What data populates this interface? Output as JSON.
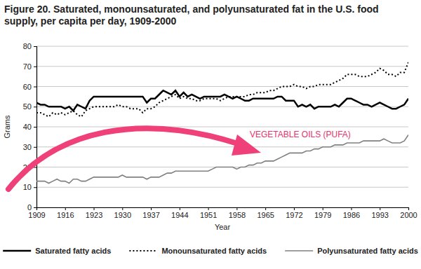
{
  "chart_data": {
    "type": "line",
    "title": "Figure 20. Saturated, monounsaturated, and polyunsaturated fat in the U.S. food supply, per capita per day, 1909-2000",
    "x_label": "Year",
    "y_label": "Grams",
    "annotation": "VEGETABLE OILS (PUFA)",
    "x": [
      1909,
      1910,
      1911,
      1912,
      1913,
      1914,
      1915,
      1916,
      1917,
      1918,
      1919,
      1920,
      1921,
      1922,
      1923,
      1924,
      1925,
      1926,
      1927,
      1928,
      1929,
      1930,
      1931,
      1932,
      1933,
      1934,
      1935,
      1936,
      1937,
      1938,
      1939,
      1940,
      1941,
      1942,
      1943,
      1944,
      1945,
      1946,
      1947,
      1948,
      1949,
      1950,
      1951,
      1952,
      1953,
      1954,
      1955,
      1956,
      1957,
      1958,
      1959,
      1960,
      1961,
      1962,
      1963,
      1964,
      1965,
      1966,
      1967,
      1968,
      1969,
      1970,
      1971,
      1972,
      1973,
      1974,
      1975,
      1976,
      1977,
      1978,
      1979,
      1980,
      1981,
      1982,
      1983,
      1984,
      1985,
      1986,
      1987,
      1988,
      1989,
      1990,
      1991,
      1992,
      1993,
      1994,
      1995,
      1996,
      1997,
      1998,
      1999,
      2000
    ],
    "series": [
      {
        "name": "Saturated fatty acids",
        "color": "#000000",
        "line_style": "solid",
        "values": [
          52,
          51,
          51,
          50,
          50,
          50,
          50,
          49,
          50,
          48,
          51,
          50,
          49,
          53,
          55,
          55,
          55,
          55,
          55,
          55,
          55,
          55,
          55,
          55,
          55,
          55,
          55,
          52,
          54,
          54,
          56,
          58,
          57,
          56,
          58,
          55,
          57,
          55,
          56,
          55,
          54,
          55,
          55,
          55,
          55,
          55,
          56,
          55,
          54,
          55,
          54,
          53,
          53,
          54,
          54,
          54,
          54,
          54,
          54,
          55,
          55,
          53,
          53,
          53,
          50,
          51,
          50,
          51,
          49,
          50,
          50,
          50,
          50,
          51,
          50,
          52,
          54,
          54,
          53,
          52,
          51,
          51,
          50,
          51,
          52,
          51,
          50,
          49,
          49,
          50,
          51,
          54
        ]
      },
      {
        "name": "Monounsaturated fatty acids",
        "color": "#000000",
        "line_style": "dotted",
        "values": [
          47,
          47,
          46,
          45,
          47,
          46,
          47,
          46,
          47,
          48,
          46,
          45,
          48,
          49,
          50,
          50,
          50,
          50,
          50,
          50,
          51,
          50,
          50,
          49,
          49,
          49,
          47,
          49,
          49,
          50,
          52,
          53,
          54,
          55,
          56,
          54,
          55,
          54,
          54,
          53,
          53,
          54,
          54,
          54,
          54,
          53,
          54,
          55,
          55,
          55,
          55,
          55,
          56,
          56,
          57,
          57,
          57,
          58,
          58,
          59,
          60,
          60,
          60,
          61,
          60,
          60,
          59,
          60,
          60,
          61,
          61,
          61,
          61,
          62,
          63,
          64,
          66,
          66,
          66,
          65,
          65,
          65,
          66,
          67,
          69,
          68,
          66,
          66,
          65,
          67,
          67,
          72
        ]
      },
      {
        "name": "Polyunsaturated fatty acids",
        "color": "#808080",
        "line_style": "solid",
        "values": [
          13,
          13,
          13,
          12,
          13,
          14,
          13,
          13,
          12,
          14,
          14,
          13,
          13,
          14,
          15,
          15,
          15,
          15,
          15,
          15,
          15,
          16,
          15,
          15,
          15,
          15,
          15,
          14,
          15,
          15,
          15,
          16,
          17,
          17,
          18,
          18,
          18,
          18,
          18,
          18,
          18,
          18,
          18,
          19,
          20,
          20,
          20,
          20,
          20,
          19,
          20,
          20,
          21,
          21,
          22,
          22,
          23,
          23,
          23,
          24,
          25,
          26,
          27,
          27,
          27,
          27,
          28,
          28,
          29,
          29,
          30,
          30,
          30,
          31,
          31,
          31,
          32,
          32,
          32,
          32,
          33,
          33,
          33,
          33,
          33,
          34,
          33,
          32,
          32,
          32,
          33,
          36
        ]
      }
    ],
    "xlim": [
      1909,
      2000
    ],
    "xticks": [
      1909,
      1916,
      1923,
      1930,
      1937,
      1944,
      1951,
      1958,
      1965,
      1972,
      1979,
      1986,
      1993,
      2000
    ],
    "ylim": [
      0,
      80
    ],
    "yticks": [
      0,
      10,
      20,
      30,
      40,
      50,
      60,
      70,
      80
    ],
    "grid": true,
    "legend": "bottom"
  }
}
